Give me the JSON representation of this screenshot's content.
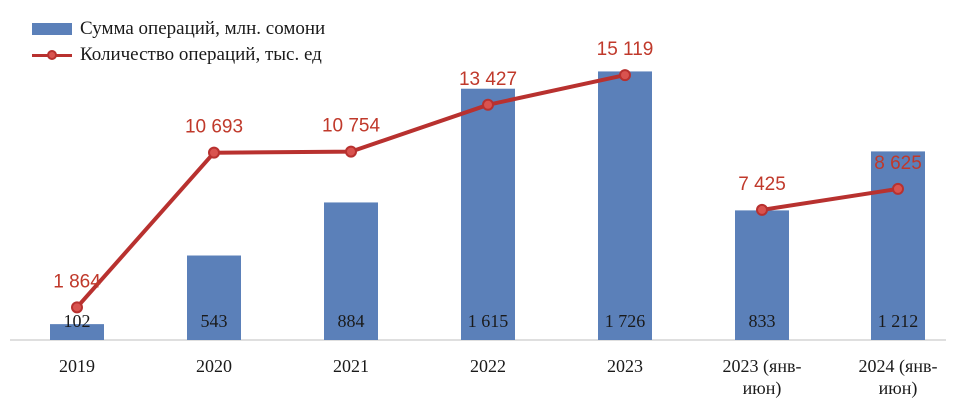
{
  "chart_data": {
    "type": "bar",
    "categories": [
      "2019",
      "2020",
      "2021",
      "2022",
      "2023",
      "2023 (янв-июн)",
      "2024 (янв-июн)"
    ],
    "category_lines": [
      [
        "2019"
      ],
      [
        "2020"
      ],
      [
        "2021"
      ],
      [
        "2022"
      ],
      [
        "2023"
      ],
      [
        "2023 (янв-",
        "июн)"
      ],
      [
        "2024 (янв-",
        "июн)"
      ]
    ],
    "series": [
      {
        "name": "Сумма операций, млн. сомони",
        "kind": "bar",
        "color": "#5b80b9",
        "values": [
          102,
          543,
          884,
          1615,
          1726,
          833,
          1212
        ],
        "labels": [
          "102",
          "543",
          "884",
          "1 615",
          "1 726",
          "833",
          "1 212"
        ]
      },
      {
        "name": "Количество операций, тыс. ед",
        "kind": "line",
        "color": "#b8312f",
        "values": [
          1864,
          10693,
          10754,
          13427,
          15119,
          7425,
          8625
        ],
        "labels": [
          "1 864",
          "10 693",
          "10 754",
          "13 427",
          "15 119",
          "7 425",
          "8 625"
        ],
        "segments": [
          [
            0,
            4
          ],
          [
            5,
            6
          ]
        ]
      }
    ],
    "legend_position": "top-left",
    "grid": false
  }
}
